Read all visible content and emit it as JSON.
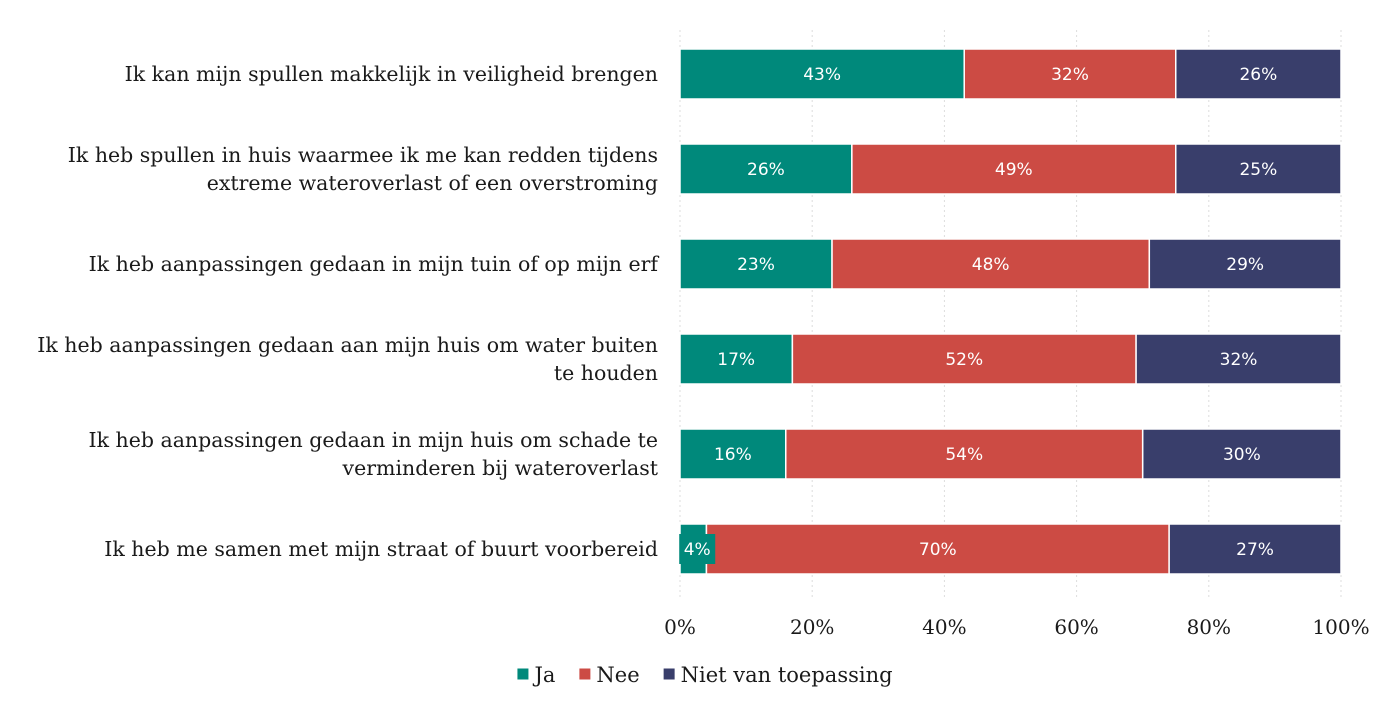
{
  "chart_data": {
    "type": "bar",
    "orientation": "horizontal",
    "stacked": true,
    "normalized": true,
    "categories": [
      "Ik kan mijn spullen makkelijk in veiligheid brengen",
      "Ik heb spullen in huis waarmee ik me kan redden tijdens extreme wateroverlast of een overstroming",
      "Ik heb aanpassingen gedaan in mijn tuin of op mijn erf",
      "Ik heb aanpassingen gedaan aan mijn huis om water buiten te houden",
      "Ik heb aanpassingen gedaan in mijn huis om schade te verminderen bij wateroverlast",
      "Ik heb me samen met mijn straat of buurt voorbereid"
    ],
    "category_lines": [
      [
        "Ik kan mijn spullen makkelijk in veiligheid brengen"
      ],
      [
        "Ik heb spullen in huis waarmee ik me kan redden tijdens",
        "extreme wateroverlast of een overstroming"
      ],
      [
        "Ik heb aanpassingen gedaan in mijn tuin of op mijn erf"
      ],
      [
        "Ik heb aanpassingen gedaan aan mijn huis om water buiten",
        "te houden"
      ],
      [
        "Ik heb aanpassingen gedaan in mijn huis om schade te",
        "verminderen bij wateroverlast"
      ],
      [
        "Ik heb me samen met mijn straat of buurt voorbereid"
      ]
    ],
    "series": [
      {
        "name": "Ja",
        "color": "#00897b",
        "values": [
          43,
          26,
          23,
          17,
          16,
          4
        ],
        "labels": [
          "43%",
          "26%",
          "23%",
          "17%",
          "16%",
          "4%"
        ]
      },
      {
        "name": "Nee",
        "color": "#cc4b44",
        "values": [
          32,
          49,
          48,
          52,
          54,
          70
        ],
        "labels": [
          "32%",
          "49%",
          "48%",
          "52%",
          "54%",
          "70%"
        ]
      },
      {
        "name": "Niet van toepassing",
        "color": "#393e6b",
        "values": [
          26,
          25,
          29,
          32,
          30,
          27
        ],
        "labels": [
          "26%",
          "25%",
          "29%",
          "32%",
          "30%",
          "27%"
        ]
      }
    ],
    "xlim": [
      0,
      100
    ],
    "x_ticks": [
      0,
      20,
      40,
      60,
      80,
      100
    ],
    "x_tick_labels": [
      "0%",
      "20%",
      "40%",
      "60%",
      "80%",
      "100%"
    ],
    "grid": true,
    "legend_position": "bottom-center",
    "title": "",
    "xlabel": "",
    "ylabel": ""
  }
}
